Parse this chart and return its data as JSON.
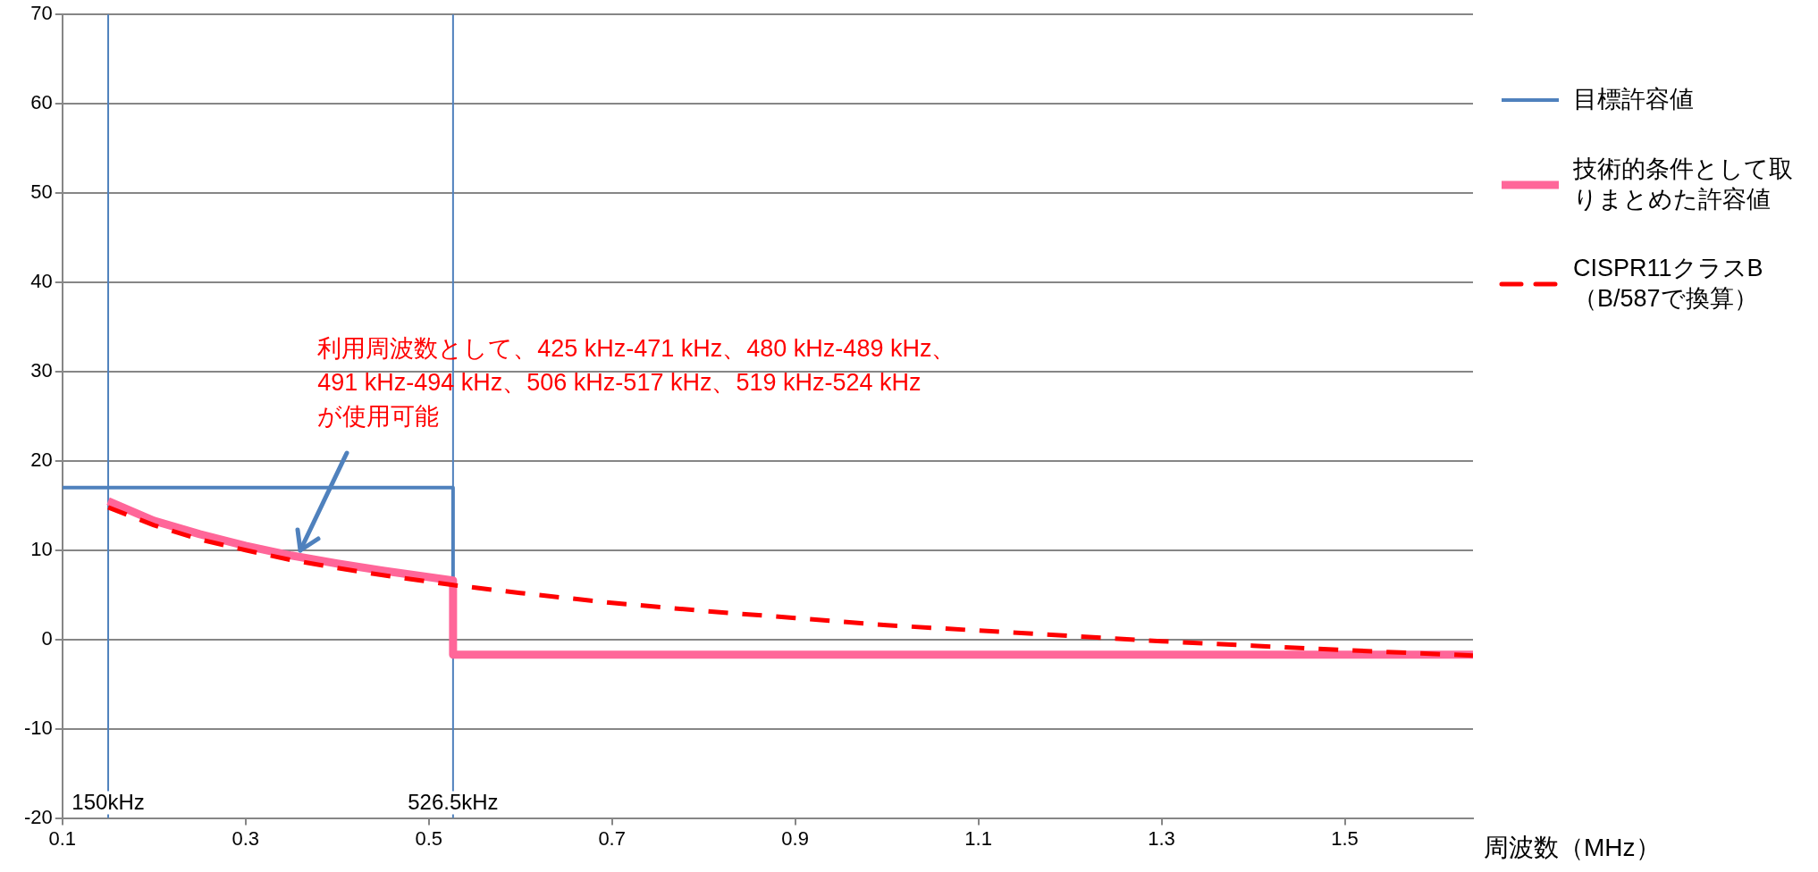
{
  "chart_data": {
    "type": "line",
    "xlabel": "周波数（MHz）",
    "xlim": [
      0.1,
      1.64
    ],
    "xticks": [
      0.1,
      0.3,
      0.5,
      0.7,
      0.9,
      1.1,
      1.3,
      1.5
    ],
    "ylim": [
      -20,
      70
    ],
    "yticks": [
      -20,
      -10,
      0,
      10,
      20,
      30,
      40,
      50,
      60,
      70
    ],
    "grid": "y",
    "legend": "right",
    "marker": "none",
    "series": [
      {
        "name": "目標許容値",
        "color": "#4f81bd",
        "line_style": "solid",
        "x": [
          0.1,
          0.5265,
          0.5265
        ],
        "values": [
          17,
          17,
          6.6
        ]
      },
      {
        "name": "技術的条件として取りまとめた許容値",
        "color": "#ff6699",
        "line_style": "solid",
        "x": [
          0.15,
          0.2,
          0.25,
          0.3,
          0.35,
          0.4,
          0.45,
          0.5265,
          0.5265,
          1.64
        ],
        "values": [
          15.5,
          13.3,
          11.8,
          10.5,
          9.4,
          8.5,
          7.7,
          6.6,
          -1.7,
          -1.7
        ]
      },
      {
        "name": "CISPR11クラスB（B/587で換算）",
        "color": "#ff0000",
        "line_style": "dashed",
        "x": [
          0.15,
          0.2,
          0.25,
          0.3,
          0.35,
          0.4,
          0.45,
          0.5265,
          0.6,
          0.7,
          0.8,
          0.9,
          1.0,
          1.1,
          1.2,
          1.3,
          1.4,
          1.5,
          1.64
        ],
        "values": [
          14.8,
          12.8,
          11.2,
          10.0,
          8.9,
          8.0,
          7.2,
          6.1,
          5.2,
          4.1,
          3.2,
          2.4,
          1.6,
          1.0,
          0.4,
          -0.2,
          -0.7,
          -1.2,
          -1.8
        ]
      }
    ],
    "ref_lines": [
      {
        "axis": "x",
        "value": 0.15,
        "label": "150kHz",
        "color": "#4f81bd"
      },
      {
        "axis": "x",
        "value": 0.5265,
        "label": "526.5kHz",
        "color": "#4f81bd"
      }
    ],
    "annotations": [
      {
        "text": "利用周波数として、425 kHz-471 kHz、480 kHz-489 kHz、\n491 kHz-494 kHz、506 kHz-517 kHz、519 kHz-524 kHz\nが使用可能",
        "x": 0.36,
        "y": 10
      }
    ]
  }
}
